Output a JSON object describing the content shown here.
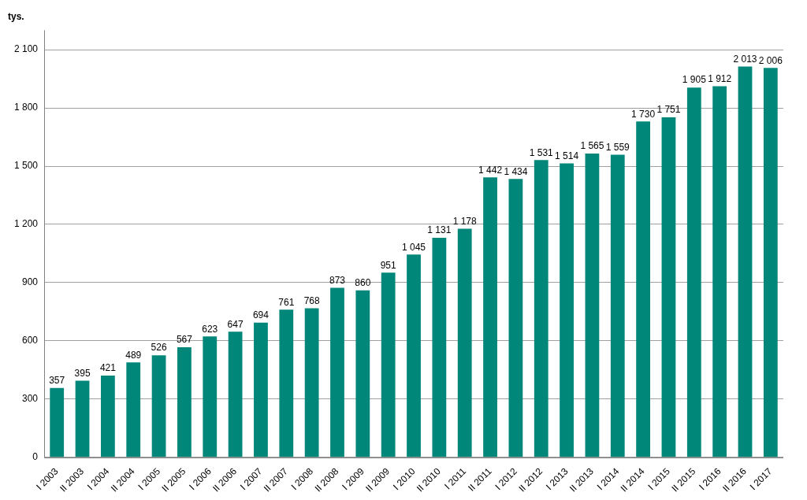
{
  "chart_data": {
    "type": "bar",
    "ylabel": "tys.",
    "categories": [
      "I 2003",
      "II 2003",
      "I 2004",
      "II 2004",
      "I 2005",
      "II 2005",
      "I 2006",
      "II 2006",
      "I 2007",
      "II 2007",
      "I 2008",
      "II 2008",
      "I 2009",
      "II 2009",
      "I 2010",
      "II 2010",
      "I 2011",
      "II 2011",
      "I 2012",
      "II 2012",
      "I 2013",
      "II 2013",
      "I 2014",
      "II 2014",
      "I 2015",
      "II 2015",
      "I 2016",
      "II 2016",
      "I 2017"
    ],
    "values": [
      357,
      395,
      421,
      489,
      526,
      567,
      623,
      647,
      694,
      761,
      768,
      873,
      860,
      951,
      1045,
      1131,
      1178,
      1442,
      1434,
      1531,
      1514,
      1565,
      1559,
      1730,
      1751,
      1905,
      1912,
      2013,
      2006
    ],
    "value_labels": [
      "357",
      "395",
      "421",
      "489",
      "526",
      "567",
      "623",
      "647",
      "694",
      "761",
      "768",
      "873",
      "860",
      "951",
      "1 045",
      "1 131",
      "1 178",
      "1 442",
      "1 434",
      "1 531",
      "1 514",
      "1 565",
      "1 559",
      "1 730",
      "1 751",
      "1 905",
      "1 912",
      "2 013",
      "2 006"
    ],
    "data_labels": true,
    "color": "#00877a",
    "ylim": [
      0,
      2200
    ],
    "yticks": [
      0,
      300,
      600,
      900,
      {
        "value": 1200,
        "label": "1 200"
      },
      {
        "value": 1500,
        "label": "1 500"
      },
      {
        "value": 1800,
        "label": "1 800"
      },
      {
        "value": 2100,
        "label": "2 100"
      }
    ],
    "grid": true
  }
}
